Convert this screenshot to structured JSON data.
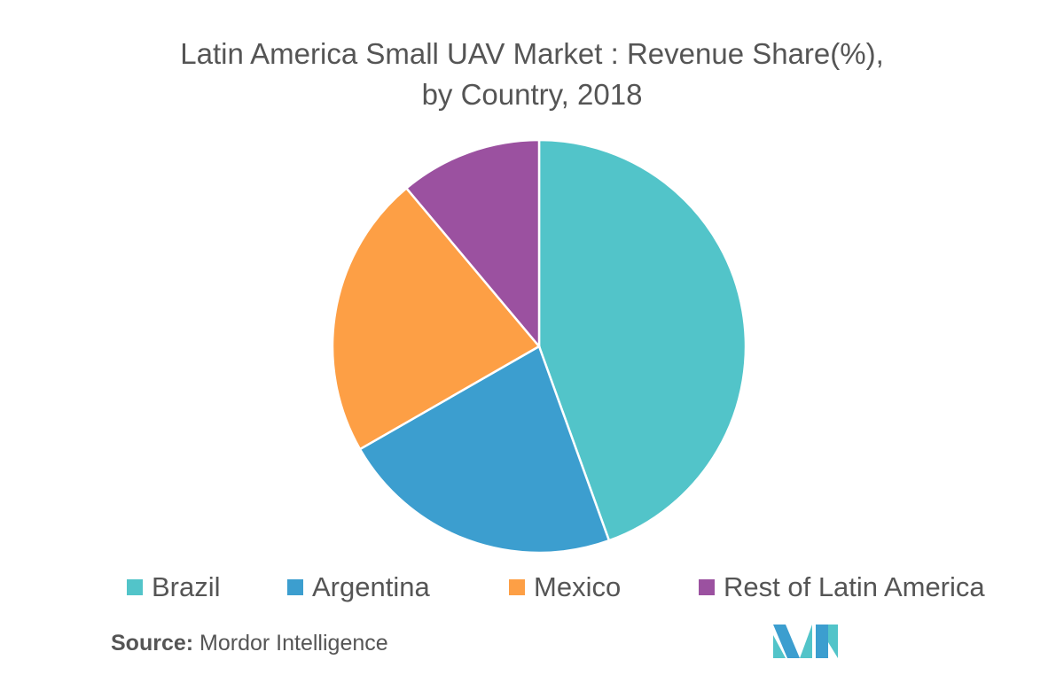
{
  "chart_data": {
    "type": "pie",
    "title_line1": "Latin America Small UAV Market : Revenue Share(%),",
    "title_line2": "by Country, 2018",
    "categories": [
      "Brazil",
      "Argentina",
      "Mexico",
      "Rest of Latin America"
    ],
    "values": [
      44.5,
      22.2,
      22.2,
      11.1
    ],
    "colors": [
      "#52C4C9",
      "#3C9ECF",
      "#FD9F45",
      "#9B51A0"
    ],
    "legend_position": "bottom"
  },
  "source": {
    "label": "Source:",
    "text": "Mordor Intelligence"
  }
}
